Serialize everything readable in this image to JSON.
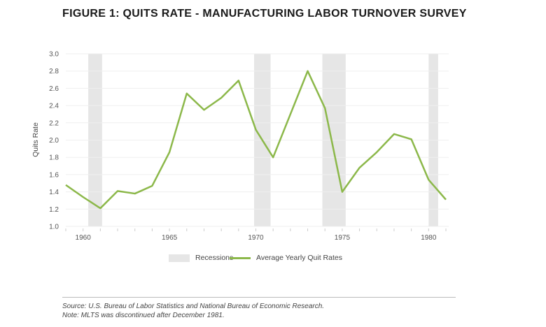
{
  "chart_data": {
    "type": "line",
    "title": "FIGURE 1: QUITS RATE - MANUFACTURING LABOR TURNOVER SURVEY",
    "xlabel": "",
    "ylabel": "Quits Rate",
    "xlim": [
      1959,
      1981
    ],
    "ylim": [
      1.0,
      3.0
    ],
    "yticks": [
      "1.0",
      "1.2",
      "1.4",
      "1.6",
      "1.8",
      "2.0",
      "2.2",
      "2.4",
      "2.6",
      "2.8",
      "3.0"
    ],
    "xticks": [
      "1960",
      "1965",
      "1970",
      "1975",
      "1980"
    ],
    "grid": true,
    "legend_position": "bottom",
    "series": [
      {
        "name": "Average Yearly Quit Rates",
        "color": "#8cb84a",
        "x": [
          1959,
          1960,
          1961,
          1962,
          1963,
          1964,
          1965,
          1966,
          1967,
          1968,
          1969,
          1970,
          1971,
          1972,
          1973,
          1974,
          1975,
          1976,
          1977,
          1978,
          1979,
          1980,
          1981
        ],
        "values": [
          1.48,
          1.34,
          1.21,
          1.41,
          1.38,
          1.47,
          1.86,
          2.54,
          2.35,
          2.49,
          2.69,
          2.12,
          1.8,
          2.3,
          2.8,
          2.37,
          1.4,
          1.68,
          1.86,
          2.07,
          2.01,
          1.54,
          1.31
        ]
      }
    ],
    "recessions": {
      "name": "Recessions",
      "color": "#e6e6e6",
      "periods": [
        [
          1960.3,
          1961.1
        ],
        [
          1969.9,
          1970.85
        ],
        [
          1973.85,
          1975.2
        ],
        [
          1980.0,
          1980.55
        ]
      ]
    }
  },
  "footer": {
    "source": "Source: U.S. Bureau of Labor Statistics and National Bureau of Economic Research.",
    "note": "Note: MLTS was discontinued after December 1981."
  }
}
